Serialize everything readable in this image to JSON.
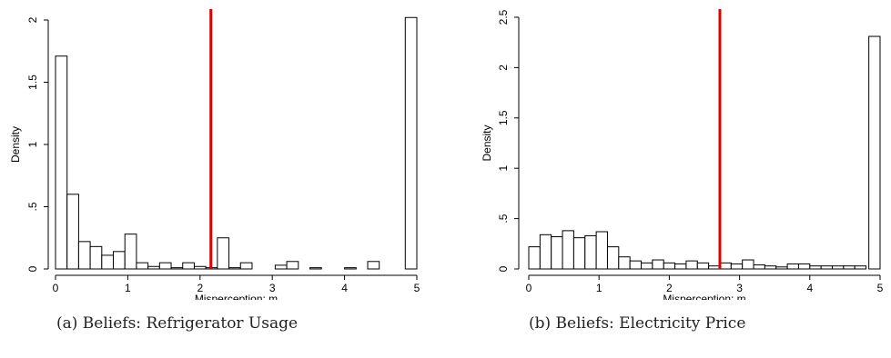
{
  "panels": [
    {
      "caption": "(a) Beliefs: Refrigerator Usage",
      "chart_data": {
        "type": "bar",
        "subtype": "histogram",
        "xlabel": "Misperception: m",
        "ylabel": "Density",
        "xlim": [
          -0.15,
          5.15
        ],
        "ylim": [
          0,
          2.05
        ],
        "xticks": [
          0,
          1,
          2,
          3,
          4,
          5
        ],
        "xtick_labels": [
          "0",
          "1",
          "2",
          "3",
          "4",
          "5"
        ],
        "yticks": [
          0,
          0.5,
          1,
          1.5,
          2
        ],
        "ytick_labels": [
          "0",
          ".5",
          "1",
          "1.5",
          "2"
        ],
        "bin_width": 0.16,
        "bin_starts": [
          0,
          0.16,
          0.32,
          0.48,
          0.64,
          0.8,
          0.96,
          1.12,
          1.28,
          1.44,
          1.6,
          1.76,
          1.92,
          2.08,
          2.24,
          2.4,
          2.56,
          2.72,
          2.88,
          3.04,
          3.2,
          3.36,
          3.52,
          3.68,
          3.84,
          4.0,
          4.16,
          4.32,
          4.48,
          4.84
        ],
        "values": [
          1.71,
          0.6,
          0.22,
          0.18,
          0.11,
          0.14,
          0.28,
          0.05,
          0.02,
          0.05,
          0.01,
          0.05,
          0.02,
          0.01,
          0.25,
          0.01,
          0.05,
          0.0,
          0.0,
          0.03,
          0.06,
          0.0,
          0.01,
          0.0,
          0.0,
          0.01,
          0.0,
          0.06,
          0.0,
          2.02
        ],
        "reference_line": {
          "x": 2.15,
          "color": "#e00000"
        },
        "bar_fill": "#ffffff",
        "bar_stroke": "#000000",
        "grid": false
      }
    },
    {
      "caption": "(b) Beliefs: Electricity Price",
      "chart_data": {
        "type": "bar",
        "subtype": "histogram",
        "xlabel": "Misperception: m",
        "ylabel": "Density",
        "xlim": [
          -0.15,
          5.15
        ],
        "ylim": [
          0,
          2.55
        ],
        "xticks": [
          0,
          1,
          2,
          3,
          4,
          5
        ],
        "xtick_labels": [
          "0",
          "1",
          "2",
          "3",
          "4",
          "5"
        ],
        "yticks": [
          0,
          0.5,
          1,
          1.5,
          2,
          2.5
        ],
        "ytick_labels": [
          "0",
          ".5",
          "1",
          "1.5",
          "2",
          "2.5"
        ],
        "bin_width": 0.16,
        "bin_starts": [
          0,
          0.16,
          0.32,
          0.48,
          0.64,
          0.8,
          0.96,
          1.12,
          1.28,
          1.44,
          1.6,
          1.76,
          1.92,
          2.08,
          2.24,
          2.4,
          2.56,
          2.72,
          2.88,
          3.04,
          3.2,
          3.36,
          3.52,
          3.68,
          3.84,
          4.0,
          4.16,
          4.32,
          4.48,
          4.64,
          4.84
        ],
        "values": [
          0.22,
          0.34,
          0.32,
          0.38,
          0.31,
          0.33,
          0.37,
          0.22,
          0.12,
          0.08,
          0.06,
          0.09,
          0.06,
          0.05,
          0.08,
          0.06,
          0.03,
          0.06,
          0.05,
          0.09,
          0.04,
          0.03,
          0.02,
          0.05,
          0.05,
          0.03,
          0.03,
          0.03,
          0.03,
          0.03,
          2.31
        ],
        "reference_line": {
          "x": 2.72,
          "color": "#e00000"
        },
        "bar_fill": "#ffffff",
        "bar_stroke": "#000000",
        "grid": false
      }
    }
  ]
}
